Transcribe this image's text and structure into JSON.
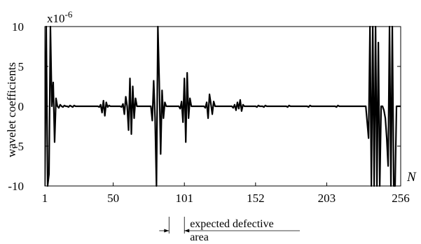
{
  "chart_data": {
    "type": "line",
    "ylabel": "wavelet coefficients",
    "xlabel": "N",
    "y_multiplier": "x10",
    "y_multiplier_exp": "-6",
    "xlim": [
      1,
      256
    ],
    "ylim": [
      -10,
      10
    ],
    "x_ticks": [
      1,
      50,
      101,
      152,
      203,
      256
    ],
    "x_tick_labels": [
      "1",
      "50",
      "101",
      "152",
      "203",
      "256"
    ],
    "y_ticks": [
      10,
      5,
      0,
      -5,
      -10
    ],
    "y_tick_labels": [
      "10",
      "5",
      "0",
      "-5",
      "-10"
    ],
    "grid": false,
    "annotation": {
      "line1": "expected defective",
      "line2": "area",
      "x_range": [
        90,
        101
      ]
    },
    "series": [
      {
        "points": [
          [
            1,
            -10
          ],
          [
            2,
            10
          ],
          [
            3,
            -10
          ],
          [
            4,
            -8.5
          ],
          [
            5,
            10
          ],
          [
            6,
            0
          ],
          [
            7,
            3
          ],
          [
            8,
            -4.5
          ],
          [
            9,
            1
          ],
          [
            10,
            0
          ],
          [
            11,
            -0.2
          ],
          [
            12,
            0.2
          ],
          [
            13,
            0
          ],
          [
            14,
            -0.1
          ],
          [
            15,
            0.1
          ],
          [
            16,
            0
          ],
          [
            17,
            0
          ],
          [
            18,
            -0.1
          ],
          [
            19,
            0.1
          ],
          [
            20,
            0
          ],
          [
            21,
            -0.1
          ],
          [
            22,
            0.1
          ],
          [
            23,
            0
          ],
          [
            24,
            0
          ],
          [
            25,
            0
          ],
          [
            26,
            0
          ],
          [
            27,
            0
          ],
          [
            28,
            0
          ],
          [
            29,
            0
          ],
          [
            30,
            0
          ],
          [
            31,
            0
          ],
          [
            32,
            0
          ],
          [
            33,
            0
          ],
          [
            34,
            0
          ],
          [
            35,
            0
          ],
          [
            36,
            0
          ],
          [
            37,
            0
          ],
          [
            38,
            0
          ],
          [
            39,
            0
          ],
          [
            40,
            -0.1
          ],
          [
            41,
            0.2
          ],
          [
            42,
            -0.8
          ],
          [
            43,
            0.7
          ],
          [
            44,
            -1.2
          ],
          [
            45,
            0.5
          ],
          [
            46,
            -0.1
          ],
          [
            47,
            0.1
          ],
          [
            48,
            0
          ],
          [
            49,
            0
          ],
          [
            50,
            0
          ],
          [
            51,
            0
          ],
          [
            52,
            0
          ],
          [
            53,
            0
          ],
          [
            54,
            0
          ],
          [
            55,
            0
          ],
          [
            56,
            -0.1
          ],
          [
            57,
            0.3
          ],
          [
            58,
            -1
          ],
          [
            59,
            1.2
          ],
          [
            60,
            0
          ],
          [
            61,
            -3
          ],
          [
            62,
            3.5
          ],
          [
            63,
            -3.5
          ],
          [
            64,
            2.5
          ],
          [
            65,
            -1.5
          ],
          [
            66,
            1
          ],
          [
            67,
            0
          ],
          [
            68,
            0
          ],
          [
            69,
            0
          ],
          [
            70,
            0
          ],
          [
            71,
            0
          ],
          [
            72,
            0
          ],
          [
            73,
            0
          ],
          [
            74,
            0
          ],
          [
            75,
            0
          ],
          [
            76,
            0
          ],
          [
            77,
            0
          ],
          [
            78,
            -1.8
          ],
          [
            79,
            3.2
          ],
          [
            80,
            -1.5
          ],
          [
            81,
            -10
          ],
          [
            82,
            10
          ],
          [
            83,
            3
          ],
          [
            84,
            -6
          ],
          [
            85,
            2
          ],
          [
            86,
            -1.5
          ],
          [
            87,
            0.5
          ],
          [
            88,
            0
          ],
          [
            89,
            0
          ],
          [
            90,
            0
          ],
          [
            91,
            0
          ],
          [
            92,
            0
          ],
          [
            93,
            0
          ],
          [
            94,
            0
          ],
          [
            95,
            0
          ],
          [
            96,
            0
          ],
          [
            97,
            0
          ],
          [
            98,
            -0.3
          ],
          [
            99,
            0.6
          ],
          [
            100,
            -2
          ],
          [
            101,
            3.5
          ],
          [
            102,
            -4.5
          ],
          [
            103,
            4.2
          ],
          [
            104,
            -1.5
          ],
          [
            105,
            1
          ],
          [
            106,
            0
          ],
          [
            107,
            0
          ],
          [
            108,
            0
          ],
          [
            109,
            0
          ],
          [
            110,
            0
          ],
          [
            111,
            0
          ],
          [
            112,
            0
          ],
          [
            113,
            0
          ],
          [
            114,
            0
          ],
          [
            115,
            0
          ],
          [
            116,
            -0.2
          ],
          [
            117,
            0.5
          ],
          [
            118,
            -1.5
          ],
          [
            119,
            1.5
          ],
          [
            120,
            0.3
          ],
          [
            121,
            -1
          ],
          [
            122,
            0.6
          ],
          [
            123,
            0
          ],
          [
            124,
            0
          ],
          [
            125,
            0
          ],
          [
            126,
            0
          ],
          [
            127,
            0
          ],
          [
            128,
            0
          ],
          [
            129,
            0
          ],
          [
            130,
            0
          ],
          [
            131,
            0
          ],
          [
            132,
            0
          ],
          [
            133,
            0
          ],
          [
            134,
            0
          ],
          [
            135,
            0
          ],
          [
            136,
            -0.2
          ],
          [
            137,
            0.2
          ],
          [
            138,
            -0.5
          ],
          [
            139,
            0.5
          ],
          [
            140,
            -0.3
          ],
          [
            141,
            0.8
          ],
          [
            142,
            -0.6
          ],
          [
            143,
            0.2
          ],
          [
            144,
            0
          ],
          [
            145,
            0
          ],
          [
            146,
            0
          ],
          [
            147,
            0
          ],
          [
            148,
            0
          ],
          [
            149,
            0
          ],
          [
            150,
            0
          ],
          [
            151,
            0
          ],
          [
            152,
            0
          ],
          [
            153,
            -0.1
          ],
          [
            154,
            0.1
          ],
          [
            155,
            0
          ],
          [
            156,
            0
          ],
          [
            157,
            0
          ],
          [
            158,
            -0.1
          ],
          [
            159,
            0.1
          ],
          [
            160,
            0
          ],
          [
            161,
            0
          ],
          [
            162,
            0
          ],
          [
            163,
            0
          ],
          [
            164,
            0
          ],
          [
            165,
            0
          ],
          [
            166,
            0
          ],
          [
            167,
            0
          ],
          [
            168,
            0
          ],
          [
            169,
            0
          ],
          [
            170,
            0
          ],
          [
            171,
            0
          ],
          [
            172,
            0
          ],
          [
            173,
            0
          ],
          [
            174,
            0
          ],
          [
            175,
            -0.1
          ],
          [
            176,
            0.1
          ],
          [
            177,
            0
          ],
          [
            178,
            0
          ],
          [
            179,
            0
          ],
          [
            180,
            0
          ],
          [
            181,
            0
          ],
          [
            182,
            0
          ],
          [
            183,
            0
          ],
          [
            184,
            0
          ],
          [
            185,
            0
          ],
          [
            186,
            0
          ],
          [
            187,
            0
          ],
          [
            188,
            0
          ],
          [
            189,
            0
          ],
          [
            190,
            -0.1
          ],
          [
            191,
            0.1
          ],
          [
            192,
            0
          ],
          [
            193,
            0
          ],
          [
            194,
            0
          ],
          [
            195,
            0
          ],
          [
            196,
            0
          ],
          [
            197,
            0
          ],
          [
            198,
            0
          ],
          [
            199,
            0
          ],
          [
            200,
            0
          ],
          [
            201,
            0
          ],
          [
            202,
            0
          ],
          [
            203,
            0
          ],
          [
            204,
            0
          ],
          [
            205,
            0
          ],
          [
            206,
            0
          ],
          [
            207,
            0
          ],
          [
            208,
            0
          ],
          [
            209,
            0
          ],
          [
            210,
            -0.1
          ],
          [
            211,
            0.1
          ],
          [
            212,
            0
          ],
          [
            213,
            0
          ],
          [
            214,
            0
          ],
          [
            215,
            0
          ],
          [
            216,
            0
          ],
          [
            217,
            0
          ],
          [
            218,
            0
          ],
          [
            219,
            0
          ],
          [
            220,
            0
          ],
          [
            221,
            0
          ],
          [
            222,
            0
          ],
          [
            223,
            0
          ],
          [
            224,
            0
          ],
          [
            225,
            0
          ],
          [
            226,
            0
          ],
          [
            227,
            0
          ],
          [
            228,
            0
          ],
          [
            229,
            0
          ],
          [
            230,
            0
          ],
          [
            231,
            0
          ],
          [
            232,
            -2
          ],
          [
            233,
            -4
          ],
          [
            234,
            10
          ],
          [
            235,
            -10
          ],
          [
            236,
            10
          ],
          [
            237,
            -10
          ],
          [
            238,
            10
          ],
          [
            239,
            -10
          ],
          [
            240,
            8
          ],
          [
            241,
            -10
          ],
          [
            242,
            0
          ],
          [
            243,
            0
          ],
          [
            244,
            -0.5
          ],
          [
            245,
            -1.5
          ],
          [
            246,
            -4
          ],
          [
            247,
            -7.5
          ],
          [
            248,
            10
          ],
          [
            249,
            -10
          ],
          [
            250,
            10
          ],
          [
            251,
            -10
          ],
          [
            252,
            -10
          ],
          [
            253,
            0
          ],
          [
            254,
            0
          ],
          [
            255,
            0
          ],
          [
            256,
            0
          ]
        ]
      }
    ]
  }
}
